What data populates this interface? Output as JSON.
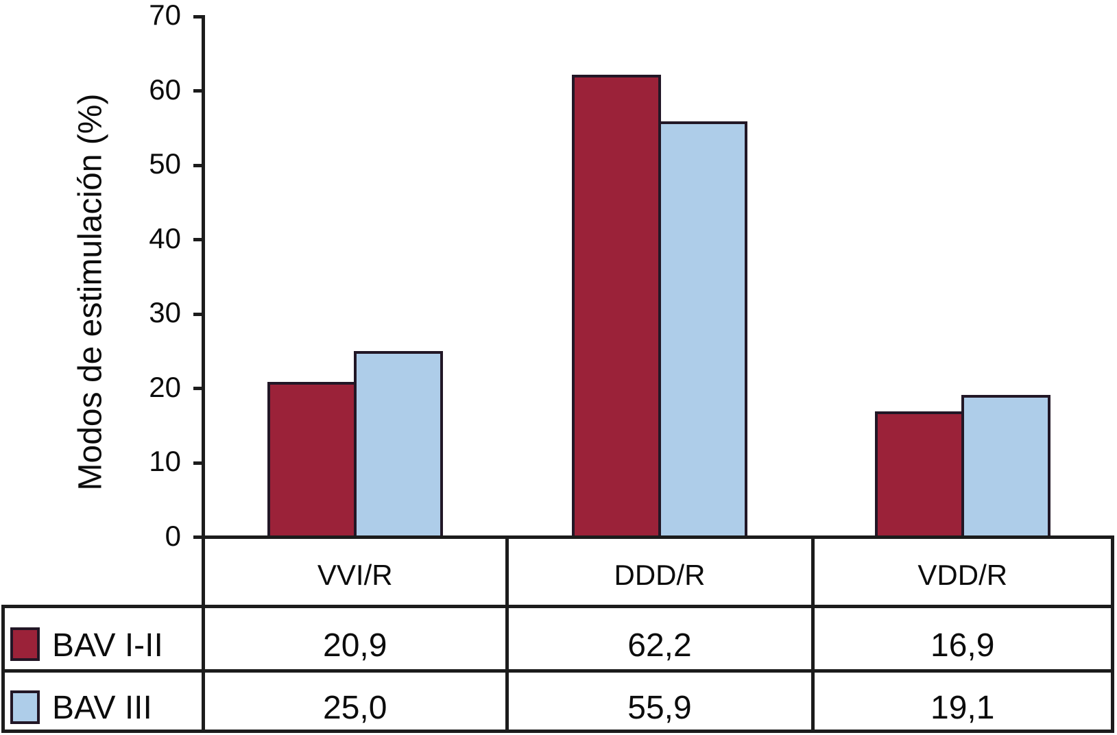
{
  "figure": {
    "background": "#ffffff",
    "line_color": "#1c1c1c",
    "bar_outline_color": "#221726",
    "text_color": "#0c0c0c"
  },
  "chart_data": {
    "type": "bar",
    "title": "",
    "xlabel": "",
    "ylabel": "Modos de estimulación (%)",
    "ylim": [
      0,
      70
    ],
    "yticks": [
      0,
      10,
      20,
      30,
      40,
      50,
      60,
      70
    ],
    "grid": false,
    "legend_position": "table-rows-left",
    "categories": [
      "VVI/R",
      "DDD/R",
      "VDD/R"
    ],
    "series": [
      {
        "name": "BAV I-II",
        "color": "#9B2239",
        "values": [
          20.9,
          62.2,
          16.9
        ],
        "values_display": [
          "20,9",
          "62,2",
          "16,9"
        ]
      },
      {
        "name": "BAV III",
        "color": "#AECDE9",
        "values": [
          25.0,
          55.9,
          19.1
        ],
        "values_display": [
          "25,0",
          "55,9",
          "19,1"
        ]
      }
    ]
  }
}
